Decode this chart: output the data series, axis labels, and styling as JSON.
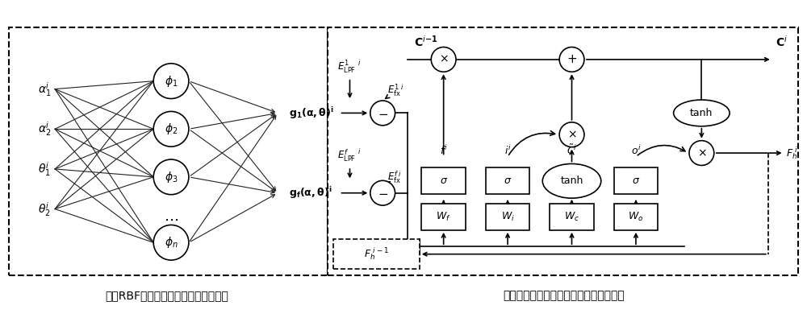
{
  "bg_color": "#ffffff",
  "line_color": "#000000",
  "left_label": "基于RBF神经网络的关节转动补偿模型",
  "right_label": "基于长短时记忆神经网络的臂力估计模型"
}
